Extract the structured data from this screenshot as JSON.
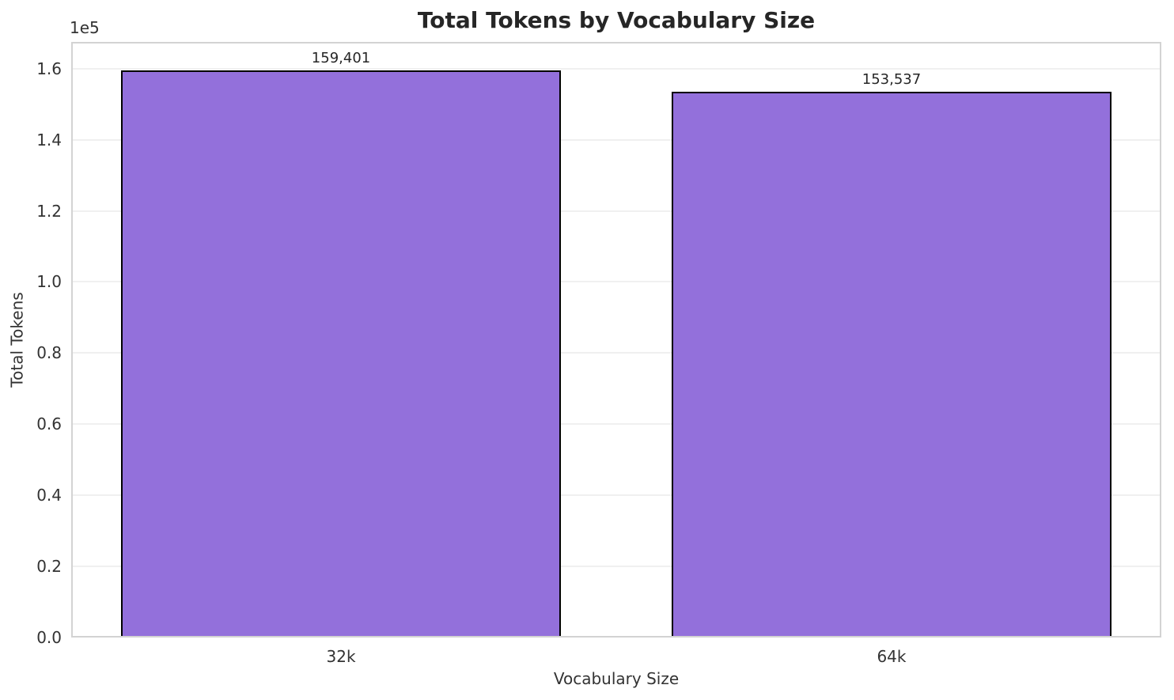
{
  "chart_data": {
    "type": "bar",
    "title": "Total Tokens by Vocabulary Size",
    "xlabel": "Vocabulary Size",
    "ylabel": "Total Tokens",
    "y_offset_text": "1e5",
    "categories": [
      "32k",
      "64k"
    ],
    "values": [
      159401,
      153537
    ],
    "value_labels": [
      "159,401",
      "153,537"
    ],
    "series": [
      {
        "name": "Total Tokens",
        "values": [
          159401,
          153537
        ]
      }
    ],
    "bar_color": "#9370DB",
    "bar_edge_color": "#000000",
    "grid": true,
    "legend": "none",
    "ylim": [
      0,
      167500
    ],
    "xlim": [
      -0.49,
      1.49
    ],
    "bar_width": 0.8,
    "y_ticks": [
      0,
      20000,
      40000,
      60000,
      80000,
      100000,
      120000,
      140000,
      160000
    ],
    "y_tick_labels": [
      "0.0",
      "0.2",
      "0.4",
      "0.6",
      "0.8",
      "1.0",
      "1.2",
      "1.4",
      "1.6"
    ],
    "colors": {
      "grid_color": "#f0f0f0",
      "spine_color": "#d3d3d3",
      "title_color": "#262626",
      "tick_color": "#333333"
    }
  }
}
